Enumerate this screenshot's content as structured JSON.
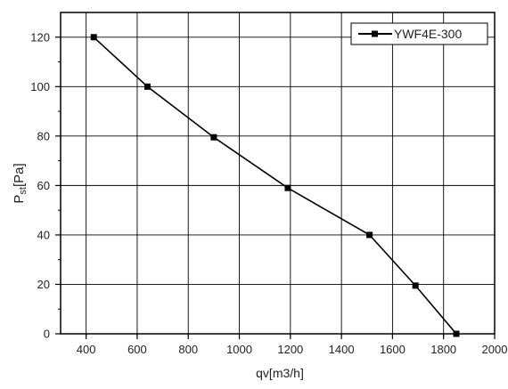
{
  "chart_data": {
    "type": "line",
    "xlabel": "qv[m3/h]",
    "ylabel": {
      "main": "P",
      "sub": "st",
      "unit": "[Pa]"
    },
    "xlim": [
      300,
      2000
    ],
    "ylim": [
      0,
      130
    ],
    "x_ticks": [
      400,
      600,
      800,
      1000,
      1200,
      1400,
      1600,
      1800,
      2000
    ],
    "x_tick_labels": [
      "400",
      "600",
      "800",
      "1000",
      "1200",
      "1400",
      "1600",
      "1800",
      "2000"
    ],
    "y_ticks": [
      0,
      20,
      40,
      60,
      80,
      100,
      120
    ],
    "y_tick_labels": [
      "0",
      "20",
      "40",
      "60",
      "80",
      "100",
      "120"
    ],
    "grid": true,
    "legend_position": "top-right",
    "series": [
      {
        "name": "YWF4E-300",
        "marker": "square",
        "color": "#000000",
        "x": [
          430,
          640,
          900,
          1190,
          1510,
          1690,
          1850
        ],
        "y": [
          120,
          100,
          79.5,
          59,
          40,
          19.5,
          0
        ]
      }
    ]
  }
}
